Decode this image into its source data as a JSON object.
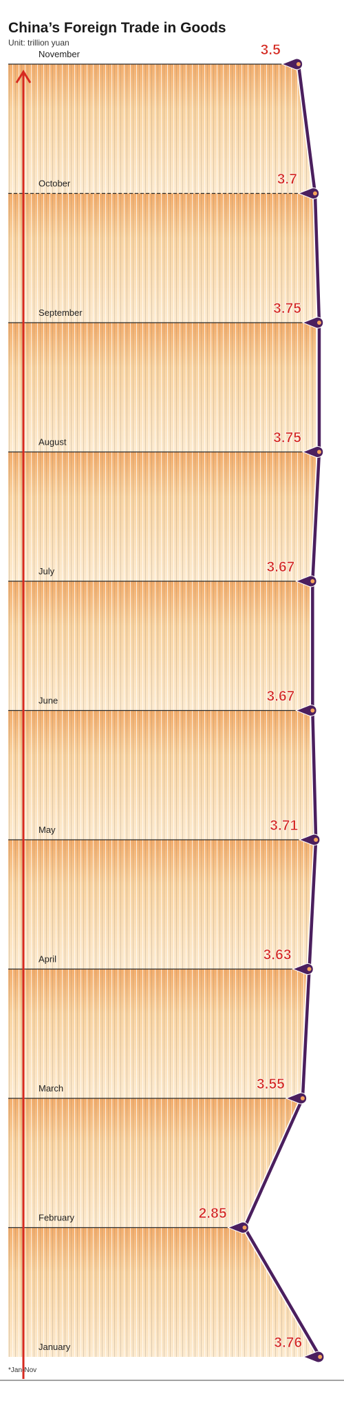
{
  "chart_data": {
    "type": "line",
    "title": "China’s Foreign Trade in Goods",
    "subtitle": "Unit: trillion yuan",
    "footnote": "*Jan-Nov",
    "categories": [
      "January",
      "February",
      "March",
      "April",
      "May",
      "June",
      "July",
      "August",
      "September",
      "October",
      "November"
    ],
    "values": [
      3.76,
      2.85,
      3.55,
      3.63,
      3.71,
      3.67,
      3.67,
      3.75,
      3.75,
      3.7,
      3.5
    ],
    "xlim": [
      0,
      3.8
    ],
    "color": "#4b1f5e",
    "label_color": "#d42a22"
  }
}
